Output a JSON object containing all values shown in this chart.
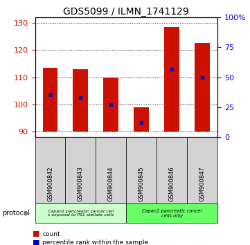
{
  "title": "GDS5099 / ILMN_1741129",
  "samples": [
    "GSM900842",
    "GSM900843",
    "GSM900844",
    "GSM900845",
    "GSM900846",
    "GSM900847"
  ],
  "bar_bottom": 90,
  "bar_tops": [
    113.5,
    113.0,
    110.0,
    99.0,
    128.5,
    122.5
  ],
  "percentile_values": [
    103.5,
    102.5,
    100.0,
    93.5,
    113.0,
    110.0
  ],
  "ylim_left": [
    88,
    132
  ],
  "yticks_left": [
    90,
    100,
    110,
    120,
    130
  ],
  "ylim_right": [
    0,
    100
  ],
  "yticks_right": [
    0,
    25,
    50,
    75,
    100
  ],
  "yticklabels_right": [
    "0",
    "25",
    "50",
    "75",
    "100%"
  ],
  "bar_color": "#cc1100",
  "marker_color": "#0000cc",
  "grid_color": "#000000",
  "left_axis_color": "#cc1100",
  "right_axis_color": "#0000cc",
  "group1_label": "Capan1 pancreatic cancer cell\ns exposed to PS1 stellate cells",
  "group2_label": "Capan1 pancreatic cancer\ncells only",
  "group1_color": "#ccffcc",
  "group2_color": "#66ff66",
  "sample_bg_color": "#d3d3d3",
  "protocol_label": "protocol",
  "legend_count": "count",
  "legend_percentile": "percentile rank within the sample",
  "bar_width": 0.5,
  "tick_label_fontsize": 8,
  "title_fontsize": 10
}
